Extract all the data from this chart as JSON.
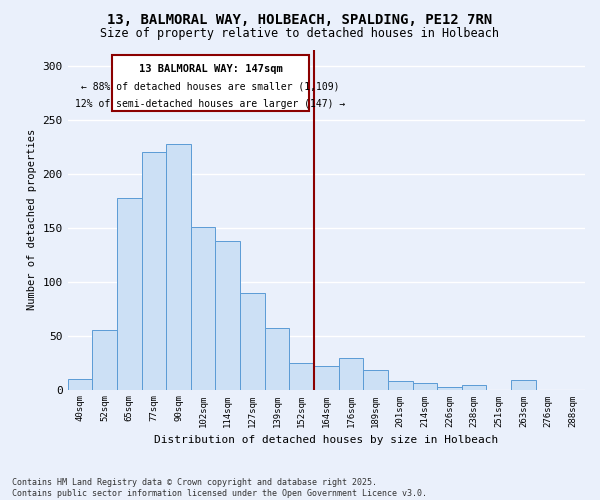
{
  "title": "13, BALMORAL WAY, HOLBEACH, SPALDING, PE12 7RN",
  "subtitle": "Size of property relative to detached houses in Holbeach",
  "xlabel": "Distribution of detached houses by size in Holbeach",
  "ylabel": "Number of detached properties",
  "footer_line1": "Contains HM Land Registry data © Crown copyright and database right 2025.",
  "footer_line2": "Contains public sector information licensed under the Open Government Licence v3.0.",
  "annotation_line1": "13 BALMORAL WAY: 147sqm",
  "annotation_line2": "← 88% of detached houses are smaller (1,109)",
  "annotation_line3": "12% of semi-detached houses are larger (147) →",
  "bar_color": "#cce0f5",
  "bar_edge_color": "#5b9bd5",
  "vline_color": "#8b0000",
  "vline_x": 9.5,
  "categories": [
    "40sqm",
    "52sqm",
    "65sqm",
    "77sqm",
    "90sqm",
    "102sqm",
    "114sqm",
    "127sqm",
    "139sqm",
    "152sqm",
    "164sqm",
    "176sqm",
    "189sqm",
    "201sqm",
    "214sqm",
    "226sqm",
    "238sqm",
    "251sqm",
    "263sqm",
    "276sqm",
    "288sqm"
  ],
  "values": [
    10,
    55,
    178,
    220,
    228,
    151,
    138,
    90,
    57,
    25,
    22,
    29,
    18,
    8,
    6,
    2,
    4,
    0,
    9,
    0,
    0
  ],
  "ylim": [
    0,
    315
  ],
  "yticks": [
    0,
    50,
    100,
    150,
    200,
    250,
    300
  ],
  "background_color": "#eaf0fb",
  "grid_color": "#ffffff",
  "annotation_box_color": "#ffffff",
  "annotation_box_edge": "#8b0000",
  "title_fontsize": 10,
  "subtitle_fontsize": 8.5
}
